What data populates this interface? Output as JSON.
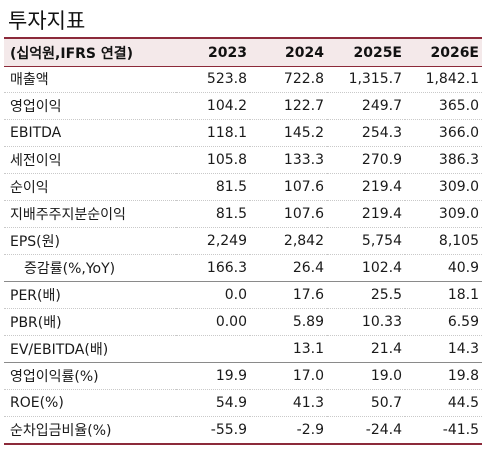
{
  "title": "투자지표",
  "table": {
    "header": [
      "(십억원,IFRS 연결)",
      "2023",
      "2024",
      "2025E",
      "2026E"
    ],
    "rows": [
      {
        "label": "매출액",
        "values": [
          "523.8",
          "722.8",
          "1,315.7",
          "1,842.1"
        ]
      },
      {
        "label": "영업이익",
        "values": [
          "104.2",
          "122.7",
          "249.7",
          "365.0"
        ]
      },
      {
        "label": "EBITDA",
        "values": [
          "118.1",
          "145.2",
          "254.3",
          "366.0"
        ]
      },
      {
        "label": "세전이익",
        "values": [
          "105.8",
          "133.3",
          "270.9",
          "386.3"
        ]
      },
      {
        "label": "순이익",
        "values": [
          "81.5",
          "107.6",
          "219.4",
          "309.0"
        ]
      },
      {
        "label": "지배주주지분순이익",
        "values": [
          "81.5",
          "107.6",
          "219.4",
          "309.0"
        ]
      },
      {
        "label": "EPS(원)",
        "values": [
          "2,249",
          "2,842",
          "5,754",
          "8,105"
        ]
      },
      {
        "label": "증감률(%,YoY)",
        "values": [
          "166.3",
          "26.4",
          "102.4",
          "40.9"
        ]
      },
      {
        "label": "PER(배)",
        "values": [
          "0.0",
          "17.6",
          "25.5",
          "18.1"
        ]
      },
      {
        "label": "PBR(배)",
        "values": [
          "0.00",
          "5.89",
          "10.33",
          "6.59"
        ]
      },
      {
        "label": "EV/EBITDA(배)",
        "values": [
          "",
          "13.1",
          "21.4",
          "14.3"
        ]
      },
      {
        "label": "영업이익률(%)",
        "values": [
          "19.9",
          "17.0",
          "19.0",
          "19.8"
        ]
      },
      {
        "label": "ROE(%)",
        "values": [
          "54.9",
          "41.3",
          "50.7",
          "44.5"
        ]
      },
      {
        "label": "순차입금비율(%)",
        "values": [
          "-55.9",
          "-2.9",
          "-24.4",
          "-41.5"
        ]
      }
    ]
  }
}
